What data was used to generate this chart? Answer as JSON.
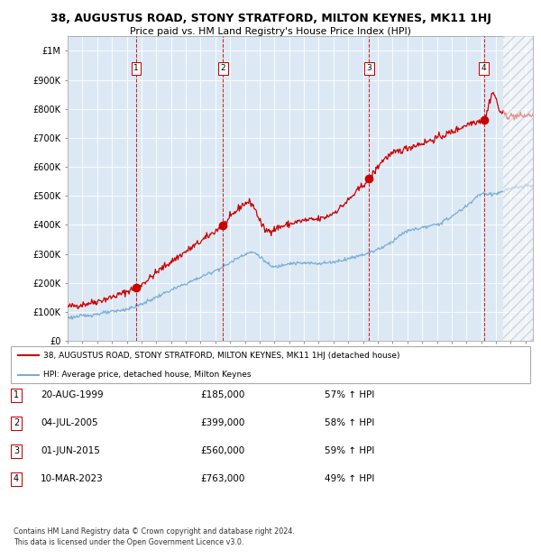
{
  "title": "38, AUGUSTUS ROAD, STONY STRATFORD, MILTON KEYNES, MK11 1HJ",
  "subtitle": "Price paid vs. HM Land Registry's House Price Index (HPI)",
  "ylim": [
    0,
    1050000
  ],
  "xlim_start": 1995.0,
  "xlim_end": 2026.5,
  "background_color": "#dce9f5",
  "hatch_region_start": 2024.5,
  "red_line_color": "#cc0000",
  "blue_line_color": "#7aadd4",
  "sale_dates": [
    1999.64,
    2005.51,
    2015.42,
    2023.19
  ],
  "sale_prices": [
    185000,
    399000,
    560000,
    763000
  ],
  "sale_labels": [
    "1",
    "2",
    "3",
    "4"
  ],
  "sale_prices_str": [
    "£185,000",
    "£399,000",
    "£560,000",
    "£763,000"
  ],
  "sale_pct": [
    "57% ↑ HPI",
    "58% ↑ HPI",
    "59% ↑ HPI",
    "49% ↑ HPI"
  ],
  "sale_dates_str": [
    "20-AUG-1999",
    "04-JUL-2005",
    "01-JUN-2015",
    "10-MAR-2023"
  ],
  "yticks": [
    0,
    100000,
    200000,
    300000,
    400000,
    500000,
    600000,
    700000,
    800000,
    900000,
    1000000
  ],
  "ytick_labels": [
    "£0",
    "£100K",
    "£200K",
    "£300K",
    "£400K",
    "£500K",
    "£600K",
    "£700K",
    "£800K",
    "£900K",
    "£1M"
  ],
  "legend_line1": "38, AUGUSTUS ROAD, STONY STRATFORD, MILTON KEYNES, MK11 1HJ (detached house)",
  "legend_line2": "HPI: Average price, detached house, Milton Keynes",
  "footer1": "Contains HM Land Registry data © Crown copyright and database right 2024.",
  "footer2": "This data is licensed under the Open Government Licence v3.0."
}
